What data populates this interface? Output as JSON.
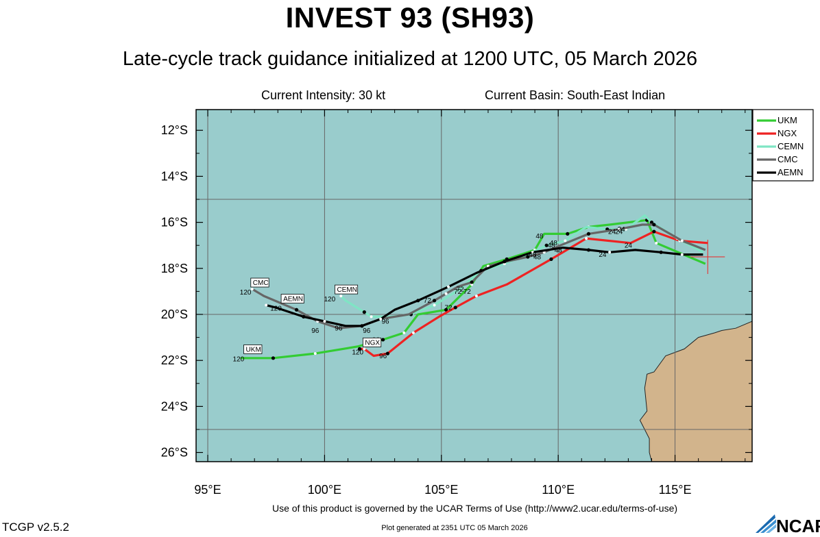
{
  "header": {
    "title": "INVEST 93 (SH93)",
    "subtitle": "Late-cycle track guidance initialized at 1200 UTC, 05 March 2026",
    "intensity": "Current Intensity: 30 kt",
    "basin": "Current Basin: South-East Indian"
  },
  "footer": {
    "terms": "Use of this product is governed by the UCAR Terms of Use (http://www2.ucar.edu/terms-of-use)",
    "version": "TCGP v2.5.2",
    "generated": "Plot generated at 2351 UTC   05 March 2026",
    "logo_text": "NCAR"
  },
  "colors": {
    "ocean": "#99cccc",
    "land": "#d2b48c",
    "grid": "#666666"
  },
  "chart_data": {
    "type": "map-track",
    "xlim": [
      94.5,
      118.3
    ],
    "ylim": [
      -26.4,
      -11.1
    ],
    "x_ticks": [
      {
        "v": 95,
        "label": "95°E"
      },
      {
        "v": 100,
        "label": "100°E"
      },
      {
        "v": 105,
        "label": "105°E"
      },
      {
        "v": 110,
        "label": "110°E"
      },
      {
        "v": 115,
        "label": "115°E"
      }
    ],
    "y_ticks": [
      {
        "v": -12,
        "label": "12°S"
      },
      {
        "v": -14,
        "label": "14°S"
      },
      {
        "v": -16,
        "label": "16°S"
      },
      {
        "v": -18,
        "label": "18°S"
      },
      {
        "v": -20,
        "label": "20°S"
      },
      {
        "v": -22,
        "label": "22°S"
      },
      {
        "v": -24,
        "label": "24°S"
      },
      {
        "v": -26,
        "label": "26°S"
      }
    ],
    "grid": true,
    "legend_position": "top-right outside",
    "current_position": {
      "lon": 116.4,
      "lat": -17.5
    },
    "series": [
      {
        "name": "UKM",
        "color": "#33cc33",
        "lon": [
          116.3,
          114.2,
          113.8,
          112.2,
          111.3,
          110.4,
          109.4,
          109.0,
          107.8,
          106.8,
          106.3,
          105.2,
          104.0,
          103.4,
          102.5,
          101.4,
          99.6,
          97.8,
          96.4
        ],
        "lat": [
          -17.8,
          -16.9,
          -15.9,
          -16.1,
          -16.2,
          -16.5,
          -16.5,
          -17.2,
          -17.6,
          -17.9,
          -18.7,
          -19.8,
          -20.0,
          -20.8,
          -21.1,
          -21.4,
          -21.7,
          -21.9,
          -21.9
        ],
        "labels": [
          {
            "t": "48",
            "lon": 109.2,
            "lat": -16.7
          }
        ]
      },
      {
        "name": "NGX",
        "color": "#ee2222",
        "lon": [
          116.4,
          115.2,
          114.1,
          113.1,
          111.2,
          109.7,
          107.8,
          106.5,
          105.6,
          104.9,
          103.8,
          102.7,
          102.1,
          101.7,
          101.5
        ],
        "lat": [
          -16.9,
          -16.8,
          -16.4,
          -16.9,
          -16.7,
          -17.6,
          -18.7,
          -19.2,
          -19.7,
          -20.1,
          -20.8,
          -21.7,
          -21.8,
          -21.5,
          -21.5
        ],
        "labels": [
          {
            "t": "24",
            "lon": 113.0,
            "lat": -17.1
          },
          {
            "t": "72",
            "lon": 105.3,
            "lat": -19.8
          },
          {
            "t": "96",
            "lon": 102.5,
            "lat": -21.9
          }
        ]
      },
      {
        "name": "CEMN",
        "color": "#7fe5c4",
        "lon": [
          116.2,
          115.1,
          114.0,
          113.7,
          112.9,
          112.1,
          111.2,
          110.3,
          109.5,
          108.7,
          107.7,
          106.7,
          105.8,
          104.7,
          103.7,
          102.9,
          102.0,
          101.7,
          100.9,
          100.7
        ],
        "lat": [
          -17.3,
          -16.7,
          -16.0,
          -15.7,
          -16.3,
          -16.3,
          -16.2,
          -16.8,
          -17.0,
          -17.4,
          -17.8,
          -18.1,
          -18.9,
          -19.6,
          -20.0,
          -20.1,
          -20.1,
          -19.9,
          -19.4,
          -19.2
        ],
        "labels": [
          {
            "t": "24",
            "lon": 112.3,
            "lat": -16.5
          }
        ]
      },
      {
        "name": "CMC",
        "color": "#666666",
        "lon": [
          116.3,
          115.3,
          114.1,
          113.6,
          112.6,
          111.3,
          110.1,
          109.4,
          108.7,
          107.8,
          107.0,
          106.3,
          105.7,
          105.2,
          104.7,
          103.6,
          102.4,
          101.6,
          100.6,
          99.7,
          98.8,
          97.4,
          96.9
        ],
        "lat": [
          -17.2,
          -16.8,
          -16.1,
          -16.1,
          -16.3,
          -16.5,
          -17.0,
          -17.3,
          -17.5,
          -17.7,
          -17.9,
          -18.6,
          -18.8,
          -19.1,
          -19.4,
          -20.0,
          -20.2,
          -20.5,
          -20.6,
          -20.3,
          -19.8,
          -19.2,
          -18.9
        ],
        "labels": [
          {
            "t": "24",
            "lon": 112.6,
            "lat": -16.5
          },
          {
            "t": "48",
            "lon": 109.7,
            "lat": -17.1
          },
          {
            "t": "72",
            "lon": 104.4,
            "lat": -19.5
          },
          {
            "t": "96",
            "lon": 100.6,
            "lat": -20.7
          }
        ]
      },
      {
        "name": "AEMN",
        "color": "#000000",
        "lon": [
          116.2,
          115.3,
          114.4,
          113.3,
          112.2,
          111.3,
          110.2,
          108.9,
          107.7,
          106.5,
          105.3,
          104.0,
          103.0,
          102.4,
          101.6,
          100.9,
          100.0,
          99.1,
          97.9,
          97.5
        ],
        "lat": [
          -17.4,
          -17.4,
          -17.3,
          -17.2,
          -17.3,
          -17.2,
          -17.1,
          -17.3,
          -17.7,
          -18.2,
          -18.8,
          -19.4,
          -19.8,
          -20.2,
          -20.5,
          -20.5,
          -20.3,
          -20.1,
          -19.7,
          -19.6
        ],
        "labels": [
          {
            "t": "24",
            "lon": 111.9,
            "lat": -17.5
          },
          {
            "t": "48",
            "lon": 109.1,
            "lat": -17.6
          },
          {
            "t": "72",
            "lon": 105.7,
            "lat": -19.1
          },
          {
            "t": "96",
            "lon": 101.8,
            "lat": -20.8
          }
        ]
      }
    ],
    "end_tags": [
      {
        "t": "CMC",
        "n": "120",
        "lon": 96.9,
        "lat": -18.9
      },
      {
        "t": "AEMN",
        "n": "120",
        "lon": 98.2,
        "lat": -19.6
      },
      {
        "t": "CEMN",
        "n": "120",
        "lon": 100.5,
        "lat": -19.2
      },
      {
        "t": "NGX",
        "n": "120",
        "lon": 101.7,
        "lat": -21.5
      },
      {
        "t": "UKM",
        "n": "120",
        "lon": 96.6,
        "lat": -21.8
      }
    ],
    "point_labels": [
      {
        "t": "48",
        "lon": 109.8,
        "lat": -17.0
      },
      {
        "t": "48",
        "lon": 108.9,
        "lat": -17.5
      },
      {
        "t": "48",
        "lon": 110.0,
        "lat": -17.3
      },
      {
        "t": "24",
        "lon": 112.7,
        "lat": -16.4
      },
      {
        "t": "72",
        "lon": 105.8,
        "lat": -19.0
      },
      {
        "t": "72",
        "lon": 106.1,
        "lat": -19.1
      },
      {
        "t": "96",
        "lon": 102.6,
        "lat": -20.4
      },
      {
        "t": "96",
        "lon": 102.2,
        "lat": -21.2
      },
      {
        "t": "96",
        "lon": 99.6,
        "lat": -20.8
      }
    ],
    "land": [
      {
        "lon": 118.3,
        "lat": -20.3
      },
      {
        "lon": 117.6,
        "lat": -20.6
      },
      {
        "lon": 117.0,
        "lat": -20.7
      },
      {
        "lon": 116.7,
        "lat": -20.8
      },
      {
        "lon": 116.0,
        "lat": -21.0
      },
      {
        "lon": 115.4,
        "lat": -21.5
      },
      {
        "lon": 114.6,
        "lat": -21.8
      },
      {
        "lon": 114.1,
        "lat": -22.5
      },
      {
        "lon": 113.8,
        "lat": -22.6
      },
      {
        "lon": 113.7,
        "lat": -23.2
      },
      {
        "lon": 113.8,
        "lat": -24.2
      },
      {
        "lon": 113.5,
        "lat": -24.6
      },
      {
        "lon": 113.9,
        "lat": -25.4
      },
      {
        "lon": 113.9,
        "lat": -26.0
      },
      {
        "lon": 114.0,
        "lat": -26.4
      },
      {
        "lon": 118.3,
        "lat": -26.4
      }
    ]
  }
}
